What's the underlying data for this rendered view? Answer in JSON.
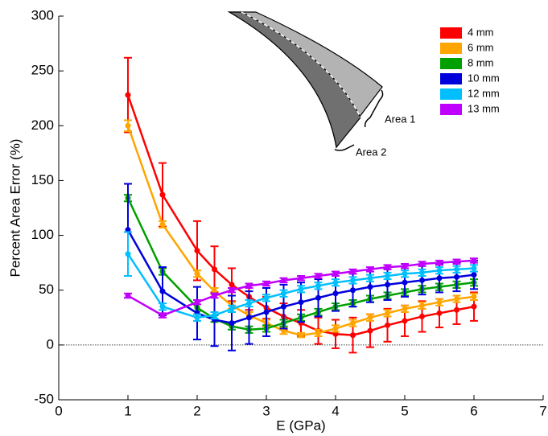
{
  "chart_data": {
    "type": "line",
    "x_label": "E (GPa)",
    "y_label": "Percent Area Error (%)",
    "annotations": [
      "Area 1",
      "Area 2"
    ],
    "x": [
      1,
      1.5,
      2,
      2.25,
      2.5,
      2.75,
      3,
      3.25,
      3.5,
      3.75,
      4,
      4.25,
      4.5,
      4.75,
      5,
      5.25,
      5.5,
      5.75,
      6
    ],
    "xlim": [
      0,
      7
    ],
    "xticks": [
      0,
      1,
      2,
      3,
      4,
      5,
      6,
      7
    ],
    "ylim": [
      -50,
      300
    ],
    "yticks": [
      -50,
      0,
      50,
      100,
      150,
      200,
      250,
      300
    ],
    "legend": "upper right",
    "series": [
      {
        "name": "4 mm",
        "color": "#ff0000",
        "values": [
          228,
          137,
          86,
          69,
          55,
          44,
          34,
          26,
          20,
          13,
          10,
          9,
          13,
          18,
          22,
          26,
          29,
          32,
          35
        ],
        "errors": [
          34,
          29,
          27,
          21,
          15,
          12,
          10,
          12,
          12,
          12,
          13,
          16,
          15,
          15,
          14,
          14,
          13,
          13,
          13
        ]
      },
      {
        "name": "6 mm",
        "color": "#ffa500",
        "values": [
          200,
          110,
          65,
          49,
          36,
          27,
          20,
          13,
          9,
          11,
          15,
          20,
          25,
          29,
          33,
          36,
          39,
          42,
          44
        ],
        "errors": [
          5,
          3,
          3,
          3,
          3,
          3,
          3,
          3,
          2,
          3,
          3,
          3,
          3,
          3,
          3,
          3,
          3,
          3,
          3
        ]
      },
      {
        "name": "8 mm",
        "color": "#00a000",
        "values": [
          134,
          67,
          34,
          24,
          17,
          14,
          15,
          20,
          25,
          30,
          35,
          38,
          42,
          45,
          48,
          51,
          53,
          55,
          57
        ],
        "errors": [
          3,
          3,
          3,
          3,
          3,
          3,
          3,
          3,
          3,
          3,
          3,
          3,
          3,
          3,
          3,
          3,
          3,
          3,
          3
        ]
      },
      {
        "name": "10 mm",
        "color": "#0000dd",
        "values": [
          105,
          49,
          29,
          23,
          20,
          25,
          30,
          35,
          39,
          43,
          47,
          50,
          53,
          55,
          57,
          59,
          61,
          62,
          64
        ],
        "errors": [
          42,
          22,
          24,
          24,
          25,
          24,
          22,
          20,
          18,
          17,
          16,
          15,
          14,
          14,
          13,
          13,
          13,
          13,
          13
        ]
      },
      {
        "name": "12 mm",
        "color": "#00bfff",
        "values": [
          83,
          35,
          25,
          27,
          33,
          38,
          43,
          47,
          51,
          54,
          57,
          59,
          61,
          63,
          65,
          66,
          68,
          69,
          70
        ],
        "errors": [
          20,
          3,
          3,
          3,
          3,
          3,
          3,
          3,
          3,
          3,
          3,
          3,
          3,
          3,
          3,
          3,
          3,
          3,
          3
        ]
      },
      {
        "name": "13 mm",
        "color": "#c000ff",
        "values": [
          45,
          27,
          39,
          45,
          50,
          54,
          56,
          59,
          61,
          63,
          65,
          67,
          69,
          71,
          72,
          74,
          75,
          76,
          77
        ],
        "errors": [
          2,
          2,
          2,
          2,
          2,
          2,
          2,
          2,
          2,
          2,
          2,
          2,
          2,
          2,
          2,
          2,
          2,
          2,
          2
        ]
      }
    ]
  }
}
